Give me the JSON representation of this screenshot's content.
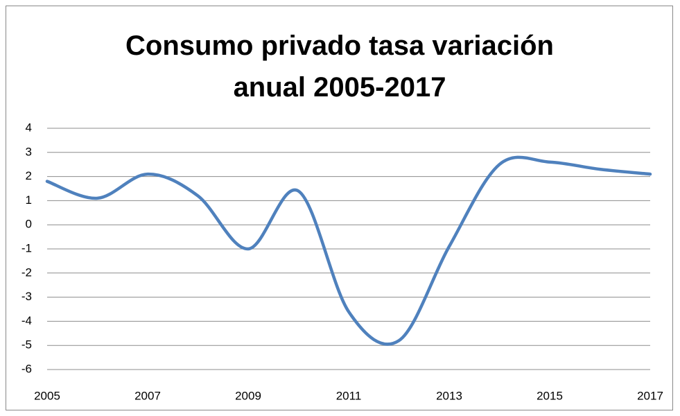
{
  "chart_data": {
    "type": "line",
    "title": "Consumo privado tasa variación anual 2005-2017",
    "x": [
      2005,
      2006,
      2007,
      2008,
      2009,
      2010,
      2011,
      2012,
      2013,
      2014,
      2015,
      2016,
      2017
    ],
    "series": [
      {
        "name": "Consumo privado",
        "color": "#4f81bd",
        "values": [
          1.8,
          1.1,
          2.1,
          1.2,
          -1.0,
          1.4,
          -3.6,
          -4.8,
          -0.9,
          2.5,
          2.6,
          2.3,
          2.1
        ]
      }
    ],
    "xlim": [
      2005,
      2017
    ],
    "xticks": [
      2005,
      2007,
      2009,
      2011,
      2013,
      2015,
      2017
    ],
    "ylim": [
      -6,
      4
    ],
    "yticks": [
      -6,
      -5,
      -4,
      -3,
      -2,
      -1,
      0,
      1,
      2,
      3,
      4
    ],
    "grid": true,
    "smooth": true
  }
}
